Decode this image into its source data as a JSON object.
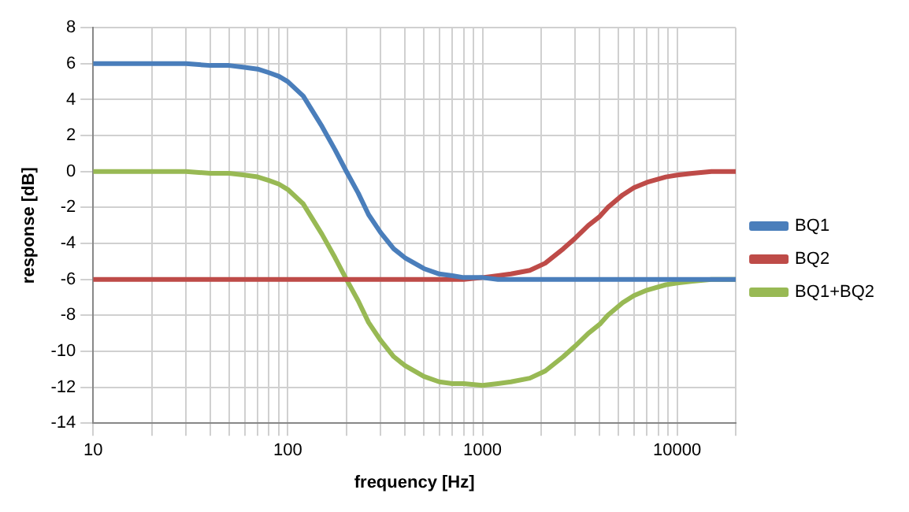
{
  "chart_data": {
    "type": "line",
    "xlabel": "frequency [Hz]",
    "ylabel": "response [dB]",
    "x": [
      10,
      20,
      30,
      40,
      50,
      60,
      70,
      80,
      90,
      100,
      120,
      150,
      175,
      200,
      230,
      260,
      300,
      350,
      400,
      500,
      600,
      700,
      800,
      1000,
      1200,
      1400,
      1750,
      2100,
      2600,
      3000,
      3500,
      4000,
      4400,
      5250,
      6000,
      7000,
      8750,
      10000,
      12000,
      15000,
      20000
    ],
    "series": [
      {
        "name": "BQ1",
        "color": "#4a7ebb",
        "values": [
          6,
          6,
          6,
          5.9,
          5.9,
          5.8,
          5.7,
          5.5,
          5.3,
          5,
          4.2,
          2.5,
          1.2,
          0,
          -1.2,
          -2.4,
          -3.4,
          -4.3,
          -4.8,
          -5.4,
          -5.7,
          -5.8,
          -5.9,
          -5.9,
          -6,
          -6,
          -6,
          -6,
          -6,
          -6,
          -6,
          -6,
          -6,
          -6,
          -6,
          -6,
          -6,
          -6,
          -6,
          -6,
          -6
        ]
      },
      {
        "name": "BQ2",
        "color": "#be4b48",
        "values": [
          -6,
          -6,
          -6,
          -6,
          -6,
          -6,
          -6,
          -6,
          -6,
          -6,
          -6,
          -6,
          -6,
          -6,
          -6,
          -6,
          -6,
          -6,
          -6,
          -6,
          -6,
          -6,
          -6,
          -5.9,
          -5.8,
          -5.7,
          -5.5,
          -5.1,
          -4.3,
          -3.7,
          -3,
          -2.5,
          -2,
          -1.3,
          -0.9,
          -0.6,
          -0.3,
          -0.2,
          -0.1,
          0,
          0
        ]
      },
      {
        "name": "BQ1+BQ2",
        "color": "#98b954",
        "values": [
          0,
          0,
          0,
          -0.1,
          -0.1,
          -0.2,
          -0.3,
          -0.5,
          -0.7,
          -1,
          -1.8,
          -3.5,
          -4.8,
          -6,
          -7.2,
          -8.4,
          -9.4,
          -10.3,
          -10.8,
          -11.4,
          -11.7,
          -11.8,
          -11.8,
          -11.9,
          -11.8,
          -11.7,
          -11.5,
          -11.1,
          -10.3,
          -9.7,
          -9,
          -8.5,
          -8,
          -7.3,
          -6.9,
          -6.6,
          -6.3,
          -6.2,
          -6.1,
          -6,
          -6
        ]
      }
    ],
    "log": "x",
    "xlim": [
      10,
      20000
    ],
    "xticks": [
      10,
      {
        "value": 20,
        "label": null
      },
      {
        "value": 30,
        "label": null
      },
      {
        "value": 40,
        "label": null
      },
      {
        "value": 50,
        "label": null
      },
      {
        "value": 60,
        "label": null
      },
      {
        "value": 70,
        "label": null
      },
      {
        "value": 80,
        "label": null
      },
      {
        "value": 90,
        "label": null
      },
      100,
      {
        "value": 200,
        "label": null
      },
      {
        "value": 300,
        "label": null
      },
      {
        "value": 400,
        "label": null
      },
      {
        "value": 500,
        "label": null
      },
      {
        "value": 600,
        "label": null
      },
      {
        "value": 700,
        "label": null
      },
      {
        "value": 800,
        "label": null
      },
      {
        "value": 900,
        "label": null
      },
      1000,
      {
        "value": 2000,
        "label": null
      },
      {
        "value": 3000,
        "label": null
      },
      {
        "value": 4000,
        "label": null
      },
      {
        "value": 5000,
        "label": null
      },
      {
        "value": 6000,
        "label": null
      },
      {
        "value": 7000,
        "label": null
      },
      {
        "value": 8000,
        "label": null
      },
      {
        "value": 9000,
        "label": null
      },
      10000,
      {
        "value": 20000,
        "label": null
      }
    ],
    "ylim": [
      -14,
      8
    ],
    "yticks": [
      -14,
      -12,
      -10,
      -8,
      -6,
      -4,
      -2,
      0,
      2,
      4,
      6,
      8
    ],
    "grid": true,
    "legend": "right",
    "marker": "none",
    "line_style": "solid"
  }
}
